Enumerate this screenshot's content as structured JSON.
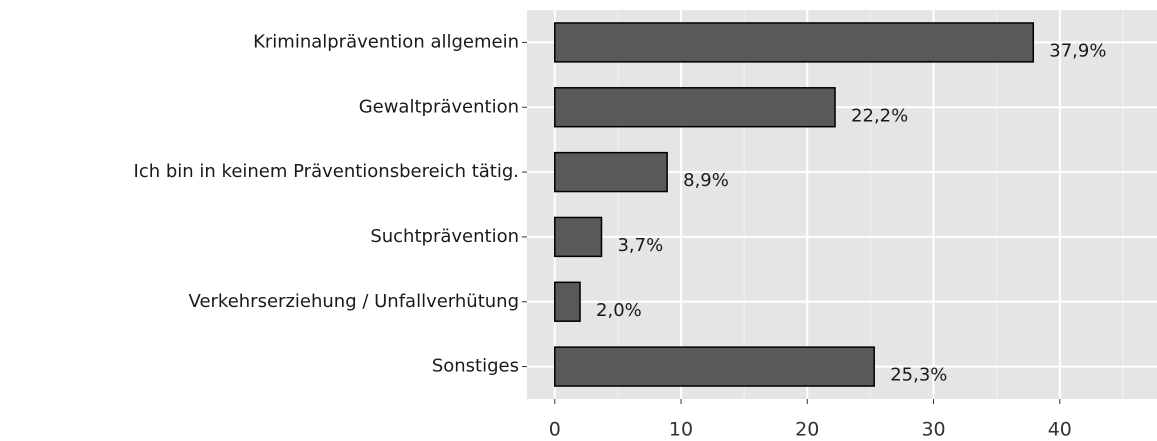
{
  "chart_data": {
    "type": "bar",
    "orientation": "horizontal",
    "categories": [
      "Kriminalprävention allgemein",
      "Gewaltprävention",
      "Ich bin in keinem Präventionsbereich tätig.",
      "Suchtprävention",
      "Verkehrserziehung / Unfallverhütung",
      "Sonstiges"
    ],
    "values": [
      37.9,
      22.2,
      8.9,
      3.7,
      2.0,
      25.3
    ],
    "value_labels": [
      "37,9%",
      "22,2%",
      "8,9%",
      "3,7%",
      "2,0%",
      "25,3%"
    ],
    "color": "#595959",
    "xlim": [
      -2.2,
      47.7
    ],
    "xticks": [
      0,
      10,
      20,
      30,
      40
    ],
    "xminor": [
      5,
      15,
      25,
      35,
      45
    ],
    "grid": true
  }
}
